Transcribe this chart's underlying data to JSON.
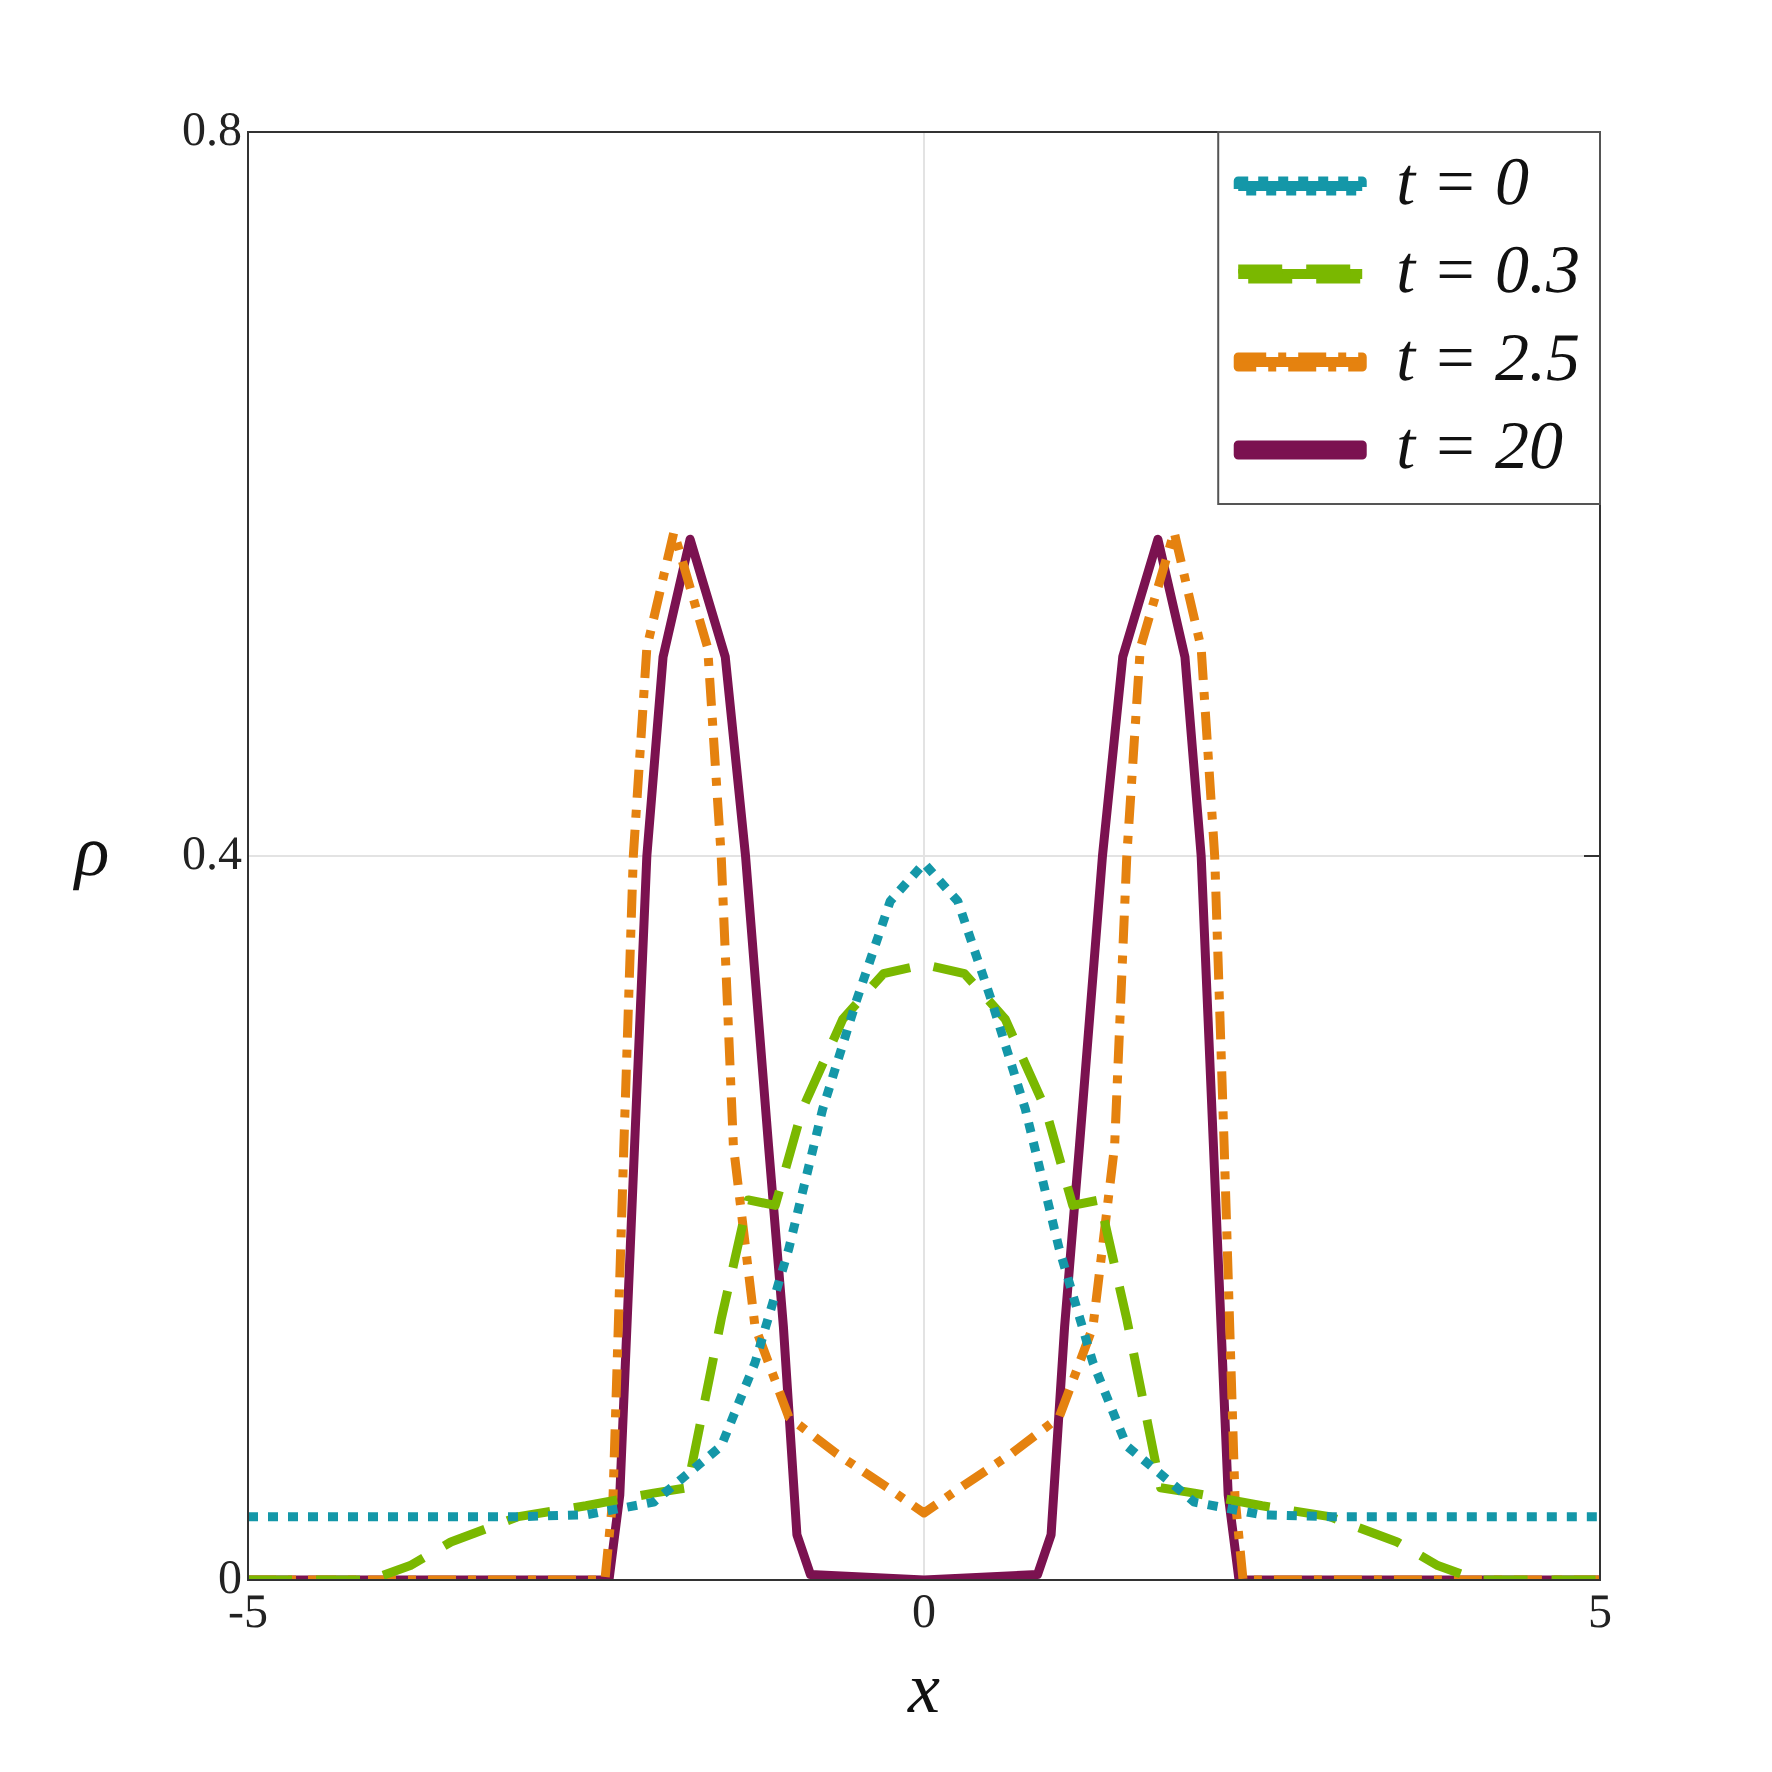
{
  "chart_data": {
    "type": "line",
    "xlabel": "x",
    "ylabel": "ρ",
    "xlim": [
      -5,
      5
    ],
    "ylim": [
      0,
      0.8
    ],
    "xticks": [
      -5,
      0,
      5
    ],
    "yticks": [
      0,
      0.4,
      0.8
    ],
    "grid": true,
    "legend": "top right",
    "marker": "none",
    "series": [
      {
        "name": "t = 0",
        "color": "#1497a8",
        "line_style": "dotted",
        "x": [
          -5,
          -3,
          -2.5,
          -2,
          -1.5,
          -1.25,
          -1,
          -0.75,
          -0.5,
          -0.25,
          0,
          0.25,
          0.5,
          0.75,
          1,
          1.25,
          1.5,
          2,
          2.5,
          3,
          5
        ],
        "values": [
          0.035,
          0.035,
          0.036,
          0.043,
          0.074,
          0.12,
          0.183,
          0.26,
          0.32,
          0.375,
          0.396,
          0.375,
          0.32,
          0.26,
          0.183,
          0.12,
          0.074,
          0.043,
          0.036,
          0.035,
          0.035
        ]
      },
      {
        "name": "t = 0.3",
        "color": "#7ab800",
        "line_style": "dashed",
        "x": [
          -5,
          -4.1,
          -3.8,
          -3.5,
          -3,
          -2.5,
          -2,
          -1.75,
          -1.5,
          -1.3,
          -1.1,
          -0.9,
          -0.6,
          -0.3,
          0,
          0.3,
          0.6,
          0.9,
          1.1,
          1.3,
          1.5,
          1.75,
          2,
          2.5,
          3,
          3.5,
          3.8,
          4.1,
          5
        ],
        "values": [
          0,
          0,
          0.008,
          0.021,
          0.035,
          0.041,
          0.048,
          0.051,
          0.144,
          0.21,
          0.207,
          0.26,
          0.31,
          0.335,
          0.34,
          0.335,
          0.31,
          0.26,
          0.207,
          0.21,
          0.144,
          0.051,
          0.048,
          0.041,
          0.035,
          0.021,
          0.008,
          0,
          0
        ]
      },
      {
        "name": "t = 2.5",
        "color": "#e5820f",
        "line_style": "dashdot",
        "x": [
          -5,
          -2.36,
          -2.3,
          -2.22,
          -2.15,
          -2.05,
          -1.85,
          -1.6,
          -1.5,
          -1.41,
          -1.25,
          -1,
          -0.65,
          -0.25,
          0,
          0.25,
          0.65,
          1,
          1.25,
          1.41,
          1.5,
          1.6,
          1.85,
          2.05,
          2.15,
          2.22,
          2.3,
          2.36,
          5
        ],
        "values": [
          0,
          0,
          0.046,
          0.24,
          0.4,
          0.515,
          0.579,
          0.515,
          0.4,
          0.24,
          0.14,
          0.09,
          0.07,
          0.05,
          0.037,
          0.05,
          0.07,
          0.09,
          0.14,
          0.24,
          0.4,
          0.515,
          0.579,
          0.515,
          0.4,
          0.24,
          0.046,
          0,
          0
        ]
      },
      {
        "name": "t = 20",
        "color": "#7b1250",
        "line_style": "solid",
        "x": [
          -5,
          -2.33,
          -2.25,
          -2.05,
          -1.93,
          -1.73,
          -1.47,
          -1.32,
          -1.15,
          -1.04,
          -0.94,
          -0.84,
          0,
          0.84,
          0.94,
          1.04,
          1.15,
          1.32,
          1.47,
          1.73,
          1.93,
          2.05,
          2.25,
          2.33,
          5
        ],
        "values": [
          0,
          0,
          0.047,
          0.4,
          0.51,
          0.575,
          0.51,
          0.4,
          0.24,
          0.14,
          0.025,
          0.003,
          0,
          0.003,
          0.025,
          0.14,
          0.24,
          0.4,
          0.51,
          0.575,
          0.51,
          0.4,
          0.047,
          0,
          0
        ]
      }
    ]
  }
}
